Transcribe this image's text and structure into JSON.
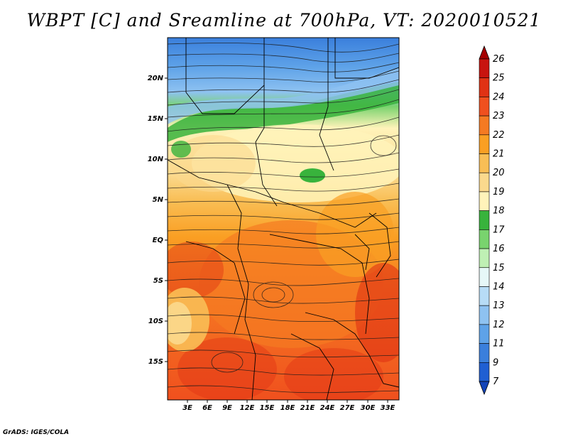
{
  "title": "WBPT [C] and Sreamline at 700hPa, VT: 2020010521",
  "credit": "GrADS: IGES/COLA",
  "map": {
    "lon_labels": [
      "3E",
      "6E",
      "9E",
      "12E",
      "15E",
      "18E",
      "21E",
      "24E",
      "27E",
      "30E",
      "33E"
    ],
    "lat_labels": [
      "20N",
      "15N",
      "10N",
      "5N",
      "EQ",
      "5S",
      "10S",
      "15S"
    ]
  },
  "colorbar": {
    "labels": [
      "26",
      "25",
      "24",
      "23",
      "22",
      "21",
      "20",
      "19",
      "18",
      "17",
      "16",
      "15",
      "14",
      "13",
      "12",
      "11",
      "9",
      "7"
    ],
    "colors": [
      "#a50000",
      "#c8140f",
      "#e03214",
      "#f0501e",
      "#f57a22",
      "#fa9f23",
      "#f9be55",
      "#fbd98d",
      "#fff3ba",
      "#38b33c",
      "#79d36e",
      "#bff0b4",
      "#e6f8f8",
      "#b7dcf6",
      "#8ec2f1",
      "#5ea2e8",
      "#3a7fdc",
      "#1f5fd2",
      "#1344b8"
    ]
  }
}
